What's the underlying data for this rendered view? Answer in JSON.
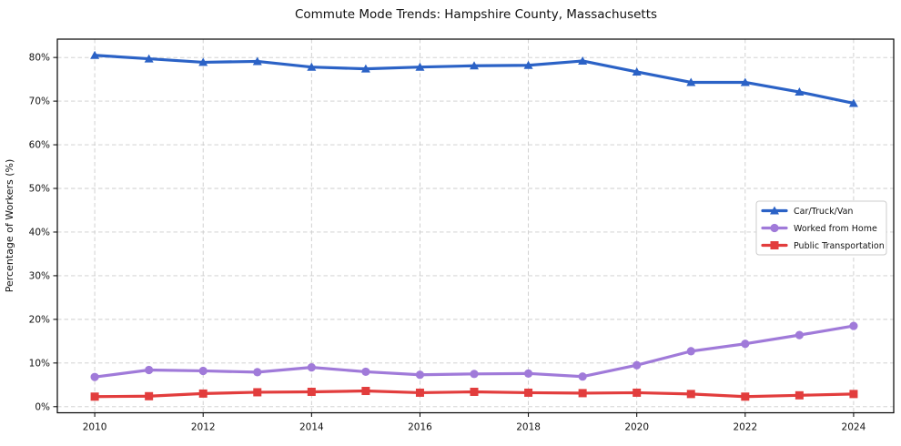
{
  "title": "Commute Mode Trends: Hampshire County, Massachusetts",
  "axes": {
    "ylabel": "Percentage of Workers (%)",
    "xlabel": "",
    "x_tick_labels": [
      "2010",
      "2012",
      "2014",
      "2016",
      "2018",
      "2020",
      "2022",
      "2024"
    ],
    "y_tick_labels": [
      "0%",
      "10%",
      "20%",
      "30%",
      "40%",
      "50%",
      "60%",
      "70%",
      "80%"
    ]
  },
  "legend": {
    "entries": [
      "Car/Truck/Van",
      "Worked from Home",
      "Public Transportation"
    ],
    "border_color": "#cccccc",
    "background": "#ffffff"
  },
  "colors": {
    "car_truck_van": "#2b62c6",
    "worked_from_home": "#a07ad9",
    "public_transportation": "#e23d3d",
    "grid": "#cccccc",
    "spine": "#000000",
    "text": "#111111"
  },
  "chart_data": {
    "type": "line",
    "title": "Commute Mode Trends: Hampshire County, Massachusetts",
    "xlabel": "",
    "ylabel": "Percentage of Workers (%)",
    "x": [
      2010,
      2011,
      2012,
      2013,
      2014,
      2015,
      2016,
      2017,
      2018,
      2019,
      2020,
      2021,
      2022,
      2023,
      2024
    ],
    "series": [
      {
        "name": "Car/Truck/Van",
        "color": "#2b62c6",
        "marker": "triangle",
        "values": [
          80.5,
          79.7,
          78.9,
          79.1,
          77.8,
          77.4,
          77.8,
          78.1,
          78.2,
          79.2,
          76.7,
          74.3,
          74.3,
          72.1,
          69.5
        ]
      },
      {
        "name": "Worked from Home",
        "color": "#a07ad9",
        "marker": "circle",
        "values": [
          6.8,
          8.4,
          8.2,
          7.9,
          9.0,
          8.0,
          7.3,
          7.5,
          7.6,
          6.9,
          9.5,
          12.7,
          14.4,
          16.4,
          18.5
        ]
      },
      {
        "name": "Public Transportation",
        "color": "#e23d3d",
        "marker": "square",
        "values": [
          2.3,
          2.4,
          3.0,
          3.3,
          3.4,
          3.6,
          3.2,
          3.4,
          3.2,
          3.1,
          3.2,
          2.9,
          2.3,
          2.6,
          2.9
        ]
      }
    ],
    "xticks": [
      2010,
      2012,
      2014,
      2016,
      2018,
      2020,
      2022,
      2024
    ],
    "yticks": [
      0,
      10,
      20,
      30,
      40,
      50,
      60,
      70,
      80
    ],
    "xlim": [
      2009.31,
      2024.74
    ],
    "ylim": [
      -1.4,
      84.2
    ],
    "grid": "dashed",
    "legend_position": "center-right"
  }
}
